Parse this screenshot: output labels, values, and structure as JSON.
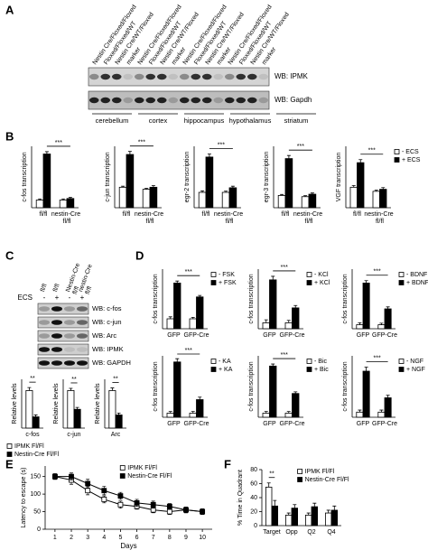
{
  "panel_labels": [
    "A",
    "B",
    "C",
    "D",
    "E",
    "F"
  ],
  "blot_a": {
    "lanes": [
      "Nestin Cre/Floxed/Floxed",
      "Floxed/Floxed/WT",
      "Nestin Cre/WT/Floxed",
      "marker",
      "Nestin Cre/Floxed/Floxed",
      "Floxed/Floxed/WT",
      "Nestin Cre/WT/Floxed",
      "marker",
      "Nestin Cre/Floxed/Floxed",
      "Floxed/Floxed/WT",
      "Nestin Cre/WT/Floxed",
      "marker",
      "Nestin Cre/Floxed/Floxed",
      "Floxed/Floxed/WT",
      "Nestin Cre/WT/Floxed",
      "marker"
    ],
    "rows": [
      "WB: IPMK",
      "WB: Gapdh"
    ],
    "regions": [
      "cerebellum",
      "cortex",
      "hippocampus",
      "hypothalamus",
      "striatum"
    ]
  },
  "blot_c": {
    "columns": [
      "fl/fl",
      "fl/fl",
      "Nestin-Cre fl/fl",
      "nestin-Cre fl/fl"
    ],
    "treatment_label": "ECS",
    "treatments": [
      "-",
      "+",
      "-",
      "+"
    ],
    "rows": [
      "WB: c-fos",
      "WB: c-jun",
      "WB: Arc",
      "WB: IPMK",
      "WB: GAPDH"
    ]
  },
  "chart_data": [
    {
      "type": "bar",
      "y_label": "c-fos transcription",
      "categories": [
        "fl/fl",
        "nestin-Cre fl/fl"
      ],
      "ylim": [
        0,
        8
      ],
      "annotation": "***",
      "series": [
        {
          "color": "#ffffff",
          "values": [
            1,
            1
          ],
          "errors": [
            0.15,
            0.15
          ]
        },
        {
          "color": "#000000",
          "values": [
            7,
            1.2
          ],
          "errors": [
            0.3,
            0.15
          ]
        }
      ]
    },
    {
      "type": "bar",
      "y_label": "c-jun transcription",
      "categories": [
        "fl/fl",
        "nestin-Cre fl/fl"
      ],
      "ylim": [
        0,
        3
      ],
      "annotation": "***",
      "series": [
        {
          "color": "#ffffff",
          "values": [
            1,
            0.9
          ],
          "errors": [
            0.05,
            0.05
          ]
        },
        {
          "color": "#000000",
          "values": [
            2.6,
            1
          ],
          "errors": [
            0.15,
            0.08
          ]
        }
      ]
    },
    {
      "type": "bar",
      "y_label": "egr-2 transcription",
      "categories": [
        "fl/fl",
        "nestin-Cre fl/fl"
      ],
      "ylim": [
        0,
        4
      ],
      "annotation": "***",
      "series": [
        {
          "color": "#ffffff",
          "values": [
            1,
            1
          ],
          "errors": [
            0.1,
            0.08
          ]
        },
        {
          "color": "#000000",
          "values": [
            3.3,
            1.3
          ],
          "errors": [
            0.2,
            0.1
          ]
        }
      ]
    },
    {
      "type": "bar",
      "y_label": "egr-3 transcription",
      "categories": [
        "fl/fl",
        "nestin-Cre fl/fl"
      ],
      "ylim": [
        0,
        5
      ],
      "annotation": "***",
      "series": [
        {
          "color": "#ffffff",
          "values": [
            1,
            0.9
          ],
          "errors": [
            0.08,
            0.08
          ]
        },
        {
          "color": "#000000",
          "values": [
            4,
            1.1
          ],
          "errors": [
            0.25,
            0.1
          ]
        }
      ]
    },
    {
      "type": "bar",
      "y_label": "VGF transcription",
      "categories": [
        "fl/fl",
        "nestin-Cre fl/fl"
      ],
      "ylim": [
        0,
        3
      ],
      "annotation": "***",
      "legend": "right",
      "series": [
        {
          "name": "- ECS",
          "color": "#ffffff",
          "values": [
            1,
            0.8
          ],
          "errors": [
            0.08,
            0.06
          ]
        },
        {
          "name": "+ ECS",
          "color": "#000000",
          "values": [
            2.2,
            0.9
          ],
          "errors": [
            0.15,
            0.08
          ]
        }
      ]
    },
    {
      "type": "bar",
      "y_label": "Relative levels",
      "categories": [
        "c-fos"
      ],
      "ylim": [
        0,
        1.3
      ],
      "annotation": "**",
      "legend": "bottom",
      "series": [
        {
          "name": "IPMK Fl/Fl",
          "color": "#ffffff",
          "values": [
            1
          ],
          "errors": [
            0.08
          ]
        },
        {
          "name": "Nestin-Cre Fl/Fl",
          "color": "#000000",
          "values": [
            0.3
          ],
          "errors": [
            0.05
          ]
        }
      ]
    },
    {
      "type": "bar",
      "y_label": "Relative levels",
      "categories": [
        "c-jun"
      ],
      "ylim": [
        0,
        1.3
      ],
      "annotation": "**",
      "series": [
        {
          "color": "#ffffff",
          "values": [
            1
          ],
          "errors": [
            0.06
          ]
        },
        {
          "color": "#000000",
          "values": [
            0.5
          ],
          "errors": [
            0.05
          ]
        }
      ]
    },
    {
      "type": "bar",
      "y_label": "Relative levels",
      "categories": [
        "Arc"
      ],
      "ylim": [
        0,
        1.3
      ],
      "annotation": "**",
      "series": [
        {
          "color": "#ffffff",
          "values": [
            1
          ],
          "errors": [
            0.07
          ]
        },
        {
          "color": "#000000",
          "values": [
            0.35
          ],
          "errors": [
            0.05
          ]
        }
      ]
    },
    {
      "type": "bar",
      "y_label": "c-fos transcription",
      "categories": [
        "GFP",
        "GFP-Cre"
      ],
      "ylim": [
        0,
        6
      ],
      "annotation": "***",
      "legend": "right",
      "series": [
        {
          "name": "- FSK",
          "color": "#ffffff",
          "values": [
            1,
            1
          ],
          "errors": [
            0.2,
            0.15
          ]
        },
        {
          "name": "+ FSK",
          "color": "#000000",
          "values": [
            4.6,
            3.2
          ],
          "errors": [
            0.2,
            0.15
          ]
        }
      ]
    },
    {
      "type": "bar",
      "y_label": "c-fos transcription",
      "categories": [
        "GFP",
        "GFP-Cre"
      ],
      "ylim": [
        0,
        10
      ],
      "annotation": "***",
      "legend": "right",
      "series": [
        {
          "name": "- KCl",
          "color": "#ffffff",
          "values": [
            1,
            1
          ],
          "errors": [
            0.5,
            0.4
          ]
        },
        {
          "name": "+ KCl",
          "color": "#000000",
          "values": [
            8.2,
            3.5
          ],
          "errors": [
            0.6,
            0.4
          ]
        }
      ]
    },
    {
      "type": "bar",
      "y_label": "c-fos transcription",
      "categories": [
        "GFP",
        "GFP-Cre"
      ],
      "ylim": [
        0,
        15
      ],
      "annotation": "***",
      "legend": "right",
      "series": [
        {
          "name": "- BDNF",
          "color": "#ffffff",
          "values": [
            1,
            1
          ],
          "errors": [
            0.5,
            0.4
          ]
        },
        {
          "name": "+ BDNF",
          "color": "#000000",
          "values": [
            11.5,
            5
          ],
          "errors": [
            0.6,
            0.5
          ]
        }
      ]
    },
    {
      "type": "bar",
      "y_label": "c-fos transcription",
      "categories": [
        "GFP",
        "GFP-Cre"
      ],
      "ylim": [
        0,
        15
      ],
      "annotation": "***",
      "legend": "right",
      "series": [
        {
          "name": "- KA",
          "color": "#ffffff",
          "values": [
            1,
            1
          ],
          "errors": [
            0.4,
            0.4
          ]
        },
        {
          "name": "+ KA",
          "color": "#000000",
          "values": [
            13.5,
            4.3
          ],
          "errors": [
            0.8,
            0.6
          ]
        }
      ]
    },
    {
      "type": "bar",
      "y_label": "c-fos transcription",
      "categories": [
        "GFP",
        "GFP-Cre"
      ],
      "ylim": [
        0,
        15
      ],
      "annotation": "***",
      "legend": "right",
      "series": [
        {
          "name": "- Bic",
          "color": "#ffffff",
          "values": [
            1,
            1
          ],
          "errors": [
            0.4,
            0.4
          ]
        },
        {
          "name": "+ Bic",
          "color": "#000000",
          "values": [
            12.5,
            5.8
          ],
          "errors": [
            0.5,
            0.4
          ]
        }
      ]
    },
    {
      "type": "bar",
      "y_label": "c-fos transcription",
      "categories": [
        "GFP",
        "GFP-Cre"
      ],
      "ylim": [
        0,
        12
      ],
      "annotation": "***",
      "legend": "right",
      "series": [
        {
          "name": "- NGF",
          "color": "#ffffff",
          "values": [
            1,
            1
          ],
          "errors": [
            0.4,
            0.4
          ]
        },
        {
          "name": "+ NGF",
          "color": "#000000",
          "values": [
            9,
            3.8
          ],
          "errors": [
            0.8,
            0.5
          ]
        }
      ]
    },
    {
      "type": "line",
      "y_label": "Latency to escape (s)",
      "x_label": "Days",
      "legend": "top",
      "x": [
        1,
        2,
        3,
        4,
        5,
        6,
        7,
        8,
        9,
        10
      ],
      "xlim": [
        0.4,
        10.6
      ],
      "xticks": [
        1,
        2,
        3,
        4,
        5,
        6,
        7,
        8,
        9,
        10
      ],
      "ylim": [
        0,
        180
      ],
      "yticks": [
        0,
        50,
        100,
        150
      ],
      "series": [
        {
          "name": "IPMK Fl/Fl",
          "color": "#ffffff",
          "values": [
            150,
            140,
            110,
            85,
            70,
            65,
            55,
            50,
            55,
            50
          ],
          "errors": [
            8,
            12,
            12,
            10,
            10,
            8,
            8,
            8,
            8,
            8
          ]
        },
        {
          "name": "Nestin-Cre Fl/Fl",
          "color": "#000000",
          "values": [
            150,
            150,
            130,
            110,
            95,
            75,
            70,
            65,
            55,
            50
          ],
          "errors": [
            8,
            10,
            12,
            12,
            10,
            10,
            10,
            8,
            8,
            8
          ]
        }
      ]
    },
    {
      "type": "bar",
      "y_label": "% Time in Quadrant",
      "categories": [
        "Target",
        "Opp",
        "Q2",
        "Q4"
      ],
      "ylim": [
        0,
        80
      ],
      "yticks": [
        0,
        20,
        40,
        60,
        80
      ],
      "annotation": "**",
      "legend": "top",
      "series": [
        {
          "name": "IPMK Fl/Fl",
          "color": "#ffffff",
          "values": [
            55,
            15,
            15,
            18
          ],
          "errors": [
            6,
            3,
            3,
            4
          ]
        },
        {
          "name": "Nestin-Cre Fl/Fl",
          "color": "#000000",
          "values": [
            28,
            25,
            27,
            22
          ],
          "errors": [
            8,
            5,
            5,
            6
          ]
        }
      ]
    }
  ]
}
